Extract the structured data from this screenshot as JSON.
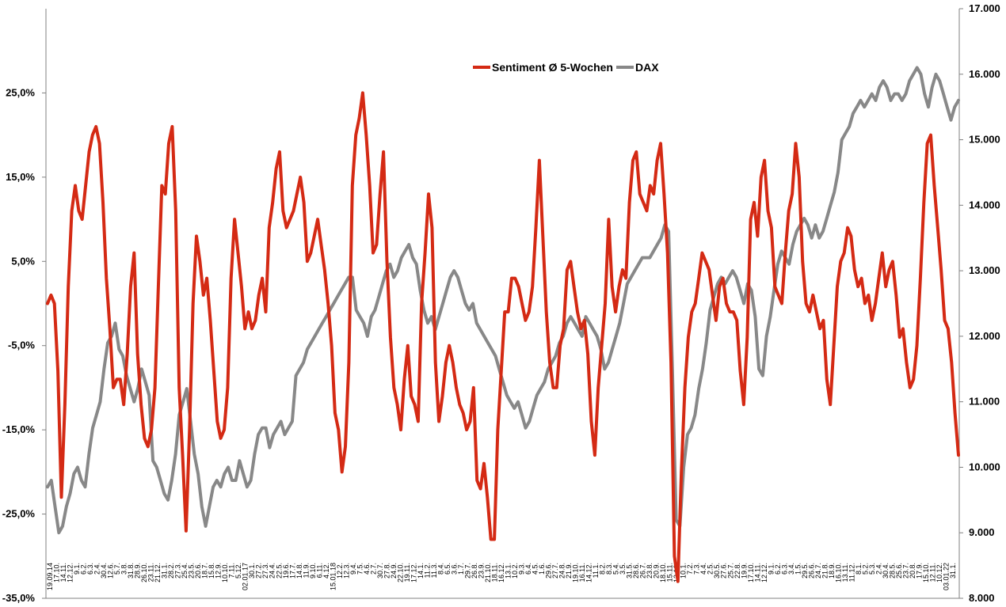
{
  "chart_data": {
    "type": "line",
    "title": "",
    "legend": {
      "placement": "top-center",
      "entries": [
        {
          "name": "Sentiment Ø 5-Wochen",
          "color": "#d42a14"
        },
        {
          "name": "DAX",
          "color": "#888888"
        }
      ]
    },
    "y_left": {
      "range": [
        -35,
        35
      ],
      "ticks": [
        25,
        15,
        5,
        -5,
        -15,
        -25,
        -35
      ],
      "tick_labels": [
        "25,0%",
        "15,0%",
        "5,0%",
        "-5,0%",
        "-15,0%",
        "-25,0%",
        "-35,0%"
      ]
    },
    "y_right": {
      "range": [
        8000,
        17000
      ],
      "ticks": [
        8000,
        9000,
        10000,
        11000,
        12000,
        13000,
        14000,
        15000,
        16000,
        17000
      ],
      "tick_labels": [
        "8.000",
        "9.000",
        "10.000",
        "11.000",
        "12.000",
        "13.000",
        "14.000",
        "15.000",
        "16.000",
        "17.000"
      ]
    },
    "x_labels": [
      "19.09.14",
      "17.10.",
      "14.11.",
      "12.12.",
      "9.1.",
      "6.2.",
      "6.3.",
      "2.4.",
      "30.4.",
      "12.6.",
      "5.7.",
      "3.8.",
      "31.8.",
      "28.9.",
      "26.10.",
      "23.11.",
      "21.12.",
      "31.1.",
      "28.2.",
      "27.3.",
      "25.4.",
      "23.5.",
      "20.6.",
      "18.7.",
      "15.8.",
      "12.9.",
      "10.10.",
      "7.11.",
      "5.12.",
      "02.01.17",
      "30.1.",
      "27.2.",
      "27.3.",
      "24.4.",
      "22.5.",
      "19.6.",
      "17.7.",
      "14.8.",
      "11.9.",
      "9.10.",
      "6.11.",
      "4.12.",
      "15.01.18",
      "12.2.",
      "12.3.",
      "9.4.",
      "7.5.",
      "4.6.",
      "2.7.",
      "30.7.",
      "27.8.",
      "24.9.",
      "22.10.",
      "19.11.",
      "17.12.",
      "14.1.",
      "11.2.",
      "11.3.",
      "8.4.",
      "6.5.",
      "3.6.",
      "1.7.",
      "29.7.",
      "26.8.",
      "23.9.",
      "21.10.",
      "18.11.",
      "16.12.",
      "13.1.",
      "10.2.",
      "9.3.",
      "6.4.",
      "4.5.",
      "1.6.",
      "29.6.",
      "27.7.",
      "24.8.",
      "21.9.",
      "19.10.",
      "16.11.",
      "14.12.",
      "11.1.",
      "8.2.",
      "8.3.",
      "5.4.",
      "3.5.",
      "31.5.",
      "28.6.",
      "26.7.",
      "23.8.",
      "20.9.",
      "18.10.",
      "15.11.",
      "13.12.",
      "10.1.",
      "7.2.",
      "7.3.",
      "4.4.",
      "2.5.",
      "30.5.",
      "27.6.",
      "25.7.",
      "22.8.",
      "19.9.",
      "17.10.",
      "14.11.",
      "12.12.",
      "9.1.",
      "6.2.",
      "6.3.",
      "3.4.",
      "1.5.",
      "29.5.",
      "26.6.",
      "24.7.",
      "21.8.",
      "18.9.",
      "16.10.",
      "13.11.",
      "11.12.",
      "8.1.",
      "5.2.",
      "5.3.",
      "2.4.",
      "30.4.",
      "28.5.",
      "25.6.",
      "23.7.",
      "20.8.",
      "17.9.",
      "15.10.",
      "12.11.",
      "10.12.",
      "03.01.22",
      "31.1."
    ],
    "series": [
      {
        "name": "Sentiment Ø 5-Wochen",
        "axis": "left",
        "color": "#d42a14",
        "values": [
          0,
          1,
          0,
          -8,
          -23,
          -12,
          2,
          11,
          14,
          11,
          10,
          14,
          18,
          20,
          21,
          19,
          12,
          3,
          -3,
          -10,
          -9,
          -9,
          -12,
          -6,
          2,
          6,
          -6,
          -12,
          -16,
          -17,
          -15,
          -10,
          2,
          14,
          13,
          19,
          21,
          11,
          -10,
          -18,
          -27,
          -15,
          0,
          8,
          5,
          1,
          3,
          -2,
          -8,
          -14,
          -16,
          -15,
          -10,
          3,
          10,
          6,
          2,
          -3,
          -1,
          -3,
          -2,
          1,
          3,
          -1,
          9,
          12,
          16,
          18,
          11,
          9,
          10,
          11,
          13,
          15,
          12,
          5,
          6,
          8,
          10,
          7,
          4,
          0,
          -5,
          -13,
          -15,
          -20,
          -17,
          -7,
          14,
          20,
          22,
          25,
          20,
          14,
          6,
          7,
          13,
          18,
          5,
          -4,
          -10,
          -12,
          -15,
          -9,
          -5,
          -11,
          -12,
          -14,
          0,
          6,
          13,
          9,
          -7,
          -14,
          -11,
          -7,
          -5,
          -7,
          -10,
          -12,
          -13,
          -15,
          -14,
          -10,
          -21,
          -22,
          -19,
          -23,
          -28,
          -28,
          -15,
          -8,
          -1,
          -1,
          3,
          3,
          2,
          0,
          -2,
          -1,
          2,
          9,
          17,
          8,
          -1,
          -7,
          -10,
          -10,
          -5,
          -3,
          4,
          5,
          2,
          -1,
          -3,
          -2,
          -6,
          -14,
          -18,
          -10,
          -5,
          0,
          10,
          2,
          -1,
          2,
          4,
          3,
          12,
          17,
          18,
          13,
          12,
          11,
          14,
          13,
          17,
          19,
          13,
          6,
          -7,
          -30,
          -33,
          -20,
          -10,
          -4,
          -1,
          0,
          3,
          6,
          5,
          4,
          1,
          -2,
          2,
          3,
          0,
          -1,
          -1,
          -2,
          -8,
          -12,
          -4,
          10,
          12,
          8,
          15,
          17,
          11,
          9,
          2,
          1,
          0,
          6,
          11,
          13,
          19,
          15,
          5,
          0,
          -1,
          1,
          -1,
          -3,
          -2,
          -9,
          -12,
          -5,
          2,
          5,
          6,
          9,
          8,
          4,
          2,
          3,
          0,
          1,
          -2,
          0,
          3,
          6,
          2,
          4,
          5,
          1,
          -4,
          -3,
          -7,
          -10,
          -9,
          -5,
          3,
          12,
          19,
          20,
          14,
          9,
          4,
          -2,
          -3,
          -7,
          -13,
          -18
        ]
      },
      {
        "name": "DAX",
        "axis": "right",
        "color": "#888888",
        "values": [
          9700,
          9800,
          9400,
          9000,
          9100,
          9400,
          9600,
          9900,
          10000,
          9800,
          9700,
          10200,
          10600,
          10800,
          11000,
          11500,
          11900,
          12000,
          12200,
          11800,
          11700,
          11400,
          11200,
          11000,
          11200,
          11500,
          11300,
          11100,
          10100,
          10000,
          9800,
          9600,
          9500,
          9800,
          10200,
          10800,
          11000,
          11200,
          10700,
          10200,
          9900,
          9400,
          9100,
          9400,
          9700,
          9800,
          9700,
          9900,
          10000,
          9800,
          9800,
          10100,
          9900,
          9700,
          9800,
          10200,
          10500,
          10600,
          10600,
          10300,
          10500,
          10600,
          10700,
          10500,
          10600,
          10700,
          11400,
          11500,
          11600,
          11800,
          11900,
          12000,
          12100,
          12200,
          12300,
          12400,
          12500,
          12600,
          12700,
          12800,
          12900,
          12900,
          12400,
          12300,
          12200,
          12000,
          12300,
          12400,
          12600,
          12800,
          13000,
          13100,
          12900,
          13000,
          13200,
          13300,
          13400,
          13200,
          13100,
          12700,
          12400,
          12200,
          12300,
          12100,
          12300,
          12500,
          12700,
          12900,
          13000,
          12900,
          12700,
          12500,
          12400,
          12500,
          12200,
          12100,
          12000,
          11900,
          11800,
          11700,
          11500,
          11300,
          11100,
          11000,
          10900,
          11000,
          10800,
          10600,
          10700,
          10900,
          11100,
          11200,
          11300,
          11500,
          11600,
          11700,
          11900,
          12000,
          12200,
          12300,
          12200,
          12100,
          12000,
          12300,
          12200,
          12100,
          12000,
          11800,
          11500,
          11600,
          11800,
          12000,
          12200,
          12500,
          12800,
          12900,
          13000,
          13100,
          13200,
          13200,
          13200,
          13300,
          13400,
          13500,
          13700,
          13600,
          11500,
          9200,
          9100,
          10000,
          10500,
          10600,
          10800,
          11200,
          11500,
          11900,
          12400,
          12600,
          12800,
          12900,
          12800,
          12900,
          13000,
          12900,
          12700,
          12500,
          12800,
          12700,
          12300,
          11500,
          11400,
          12000,
          12300,
          12700,
          13100,
          13300,
          13200,
          13100,
          13400,
          13600,
          13700,
          13800,
          13700,
          13500,
          13700,
          13500,
          13600,
          13800,
          14000,
          14200,
          14500,
          15000,
          15100,
          15200,
          15400,
          15500,
          15600,
          15500,
          15600,
          15700,
          15600,
          15800,
          15900,
          15800,
          15600,
          15700,
          15700,
          15600,
          15700,
          15900,
          16000,
          16100,
          16000,
          15700,
          15500,
          15800,
          16000,
          15900,
          15700,
          15500,
          15300,
          15500,
          15600
        ]
      }
    ]
  }
}
